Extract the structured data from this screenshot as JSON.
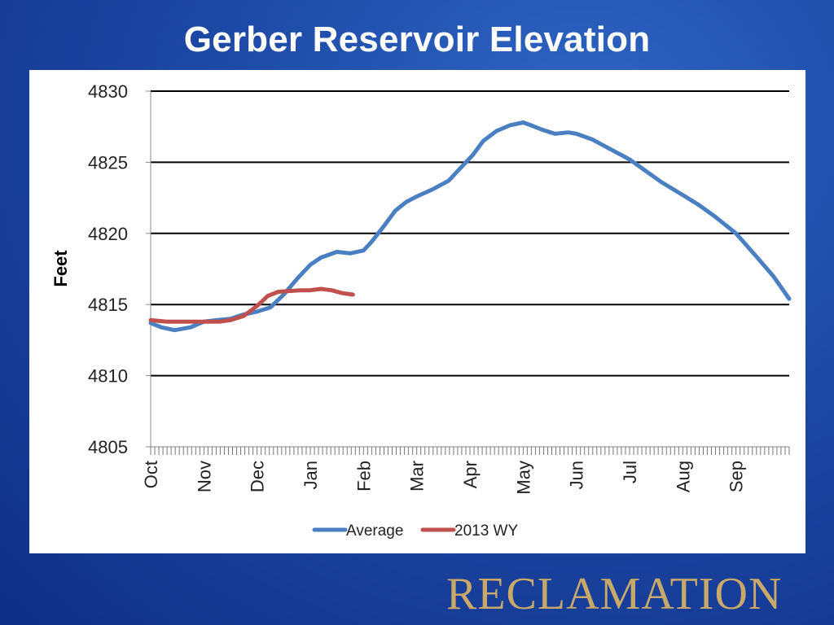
{
  "slide": {
    "title": "Gerber Reservoir Elevation",
    "logo_text": "RECLAMATION"
  },
  "colors": {
    "background": "#1d49a6",
    "average": "#4a7fc1",
    "wy2013": "#c0504d",
    "logo": "#c9a96a"
  },
  "chart_data": {
    "type": "line",
    "title": "",
    "xlabel": "",
    "ylabel": "Feet",
    "ylim": [
      4805,
      4830
    ],
    "yticks": [
      4805,
      4810,
      4815,
      4820,
      4825,
      4830
    ],
    "xlim": [
      0,
      12
    ],
    "month_labels": [
      "Oct",
      "Nov",
      "Dec",
      "Jan",
      "Feb",
      "Mar",
      "Apr",
      "May",
      "Jun",
      "Jul",
      "Aug",
      "Sep"
    ],
    "grid": "horizontal",
    "legend_position": "bottom",
    "series": [
      {
        "name": "Average",
        "color": "#4a7fc1",
        "x": [
          0,
          0.2,
          0.45,
          0.75,
          1.0,
          1.25,
          1.5,
          1.75,
          2.0,
          2.25,
          2.5,
          2.75,
          3.0,
          3.2,
          3.5,
          3.75,
          4.0,
          4.15,
          4.4,
          4.6,
          4.8,
          5.0,
          5.3,
          5.6,
          5.8,
          6.05,
          6.25,
          6.5,
          6.75,
          7.0,
          7.15,
          7.35,
          7.6,
          7.85,
          8.0,
          8.3,
          8.6,
          9.0,
          9.3,
          9.6,
          10.0,
          10.3,
          10.6,
          11.0,
          11.4,
          11.7,
          12.0
        ],
        "values": [
          4813.7,
          4813.4,
          4813.2,
          4813.4,
          4813.8,
          4813.9,
          4814.0,
          4814.3,
          4814.5,
          4814.8,
          4815.7,
          4816.8,
          4817.8,
          4818.3,
          4818.7,
          4818.6,
          4818.8,
          4819.4,
          4820.6,
          4821.6,
          4822.2,
          4822.6,
          4823.1,
          4823.7,
          4824.5,
          4825.5,
          4826.5,
          4827.2,
          4827.6,
          4827.8,
          4827.6,
          4827.3,
          4827.0,
          4827.1,
          4827.0,
          4826.6,
          4826.0,
          4825.2,
          4824.4,
          4823.6,
          4822.7,
          4822.0,
          4821.2,
          4820.0,
          4818.3,
          4817.0,
          4815.4
        ]
      },
      {
        "name": "2013 WY",
        "color": "#c0504d",
        "x": [
          0,
          0.3,
          0.6,
          1.0,
          1.3,
          1.5,
          1.75,
          2.0,
          2.2,
          2.4,
          2.6,
          2.8,
          3.0,
          3.2,
          3.4,
          3.6,
          3.8
        ],
        "values": [
          4813.9,
          4813.8,
          4813.8,
          4813.8,
          4813.8,
          4813.9,
          4814.2,
          4814.9,
          4815.6,
          4815.9,
          4815.95,
          4816.0,
          4816.0,
          4816.1,
          4816.0,
          4815.8,
          4815.7
        ]
      }
    ]
  }
}
